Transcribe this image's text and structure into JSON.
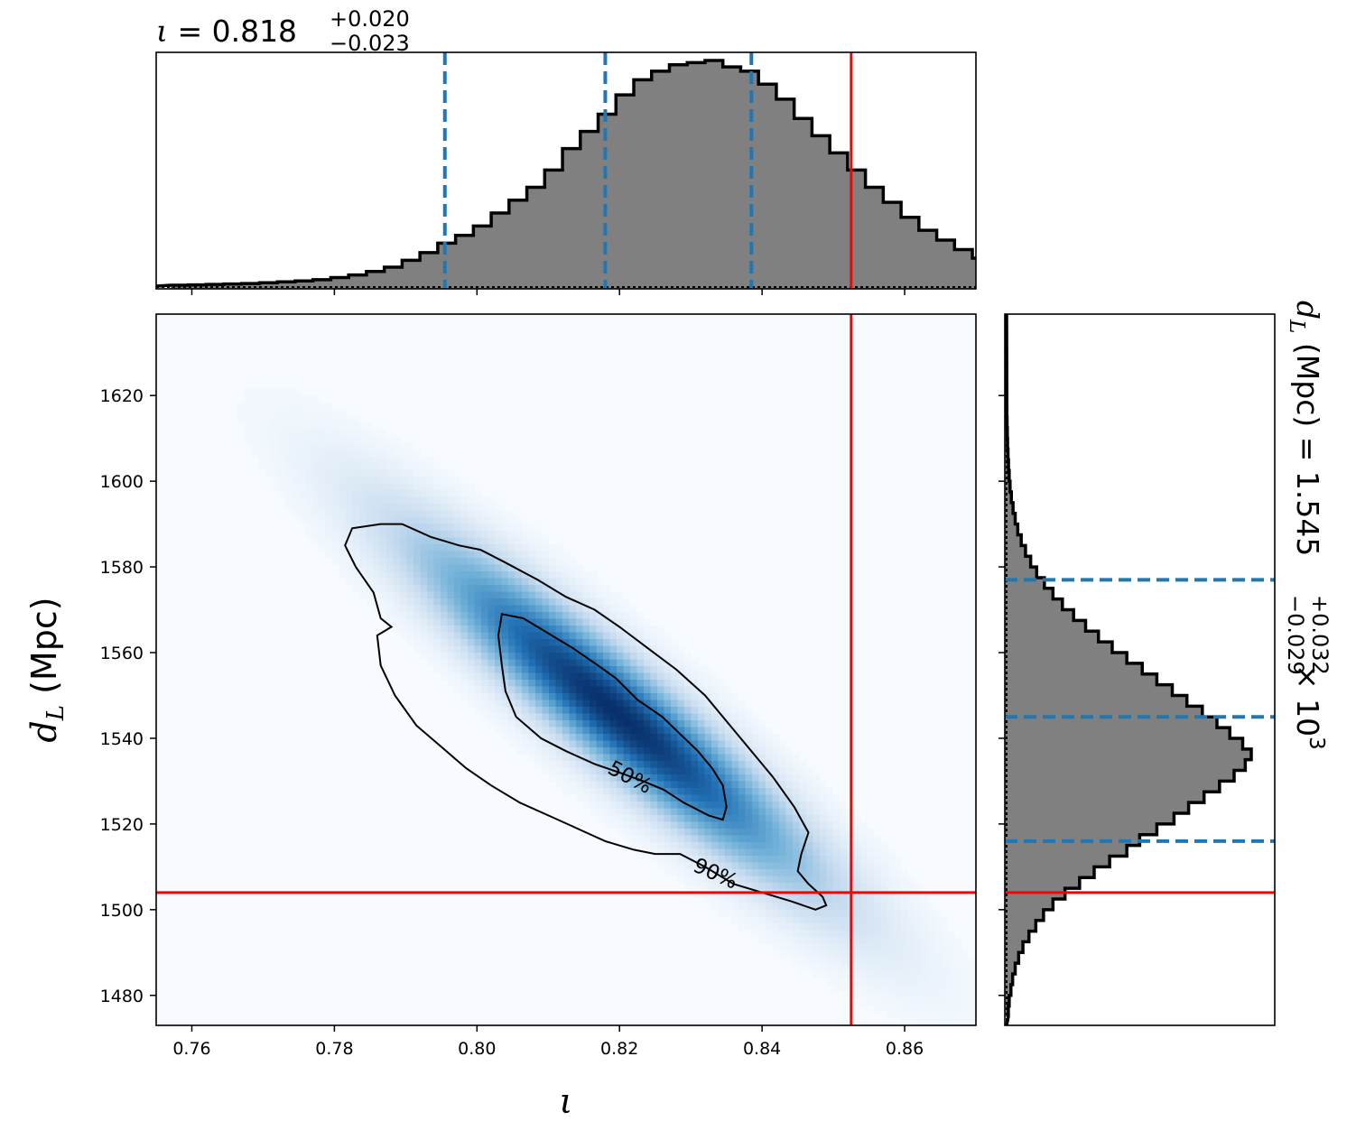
{
  "colors": {
    "histogram_fill": "#808080",
    "histogram_edge": "#000000",
    "quantile_line": "#1f77b4",
    "truth_line": "#ff0000",
    "density_low": "#f7fbff",
    "density_high": "#08306b",
    "contour": "#000000"
  },
  "chart_data": [
    {
      "id": "iota-marginal",
      "type": "bar",
      "subtype": "step-histogram",
      "title_symbol": "ι",
      "title_eq": " = 0.818",
      "title_sup": "+0.020",
      "title_sub": "−0.023",
      "xlim": [
        0.755,
        0.87
      ],
      "bin_edges_start": 0.757,
      "bin_width": 0.0025,
      "counts": [
        0.2,
        0.3,
        0.4,
        0.5,
        0.6,
        0.8,
        1,
        1.2,
        1.5,
        2,
        2.6,
        3.4,
        4.4,
        6,
        7.8,
        10,
        11.8,
        14,
        17,
        20,
        23,
        27,
        32,
        36,
        40,
        44.5,
        48,
        50,
        51.5,
        52,
        52.5,
        51,
        50,
        47,
        43.5,
        39,
        35,
        31,
        27,
        23,
        19.5,
        16,
        13,
        10.7,
        8.5,
        6.5,
        5,
        3.7,
        2.8,
        2.1,
        1.5,
        1.1,
        0.8,
        0.6,
        0.45,
        0.35
      ],
      "quantiles": [
        0.7955,
        0.818,
        0.8385
      ],
      "truth": 0.8525
    },
    {
      "id": "joint-density",
      "type": "heatmap",
      "xlim": [
        0.755,
        0.87
      ],
      "ylim": [
        1473,
        1639
      ],
      "xticks": [
        "0.76",
        "0.78",
        "0.80",
        "0.82",
        "0.84",
        "0.86"
      ],
      "xtick_values": [
        0.76,
        0.78,
        0.8,
        0.82,
        0.84,
        0.86
      ],
      "yticks": [
        "1480",
        "1500",
        "1520",
        "1540",
        "1560",
        "1580",
        "1600",
        "1620"
      ],
      "ytick_values": [
        1480,
        1500,
        1520,
        1540,
        1560,
        1580,
        1600,
        1620
      ],
      "xlabel": "ι",
      "ylabel_base": "d",
      "ylabel_sub": "L",
      "ylabel_unit": " (Mpc)",
      "mean": [
        0.8195,
        1546
      ],
      "density_axes": {
        "along_sd": 1.0,
        "across_sd": 0.055
      },
      "contours": [
        {
          "label": "50%",
          "label_at": [
            0.8215,
            1531
          ],
          "label_angle_deg": 28,
          "points": [
            [
              0.8035,
              1569
            ],
            [
              0.8065,
              1568
            ],
            [
              0.8105,
              1564
            ],
            [
              0.8135,
              1561
            ],
            [
              0.817,
              1557
            ],
            [
              0.8195,
              1554
            ],
            [
              0.8225,
              1549
            ],
            [
              0.826,
              1545
            ],
            [
              0.8285,
              1541
            ],
            [
              0.831,
              1537
            ],
            [
              0.833,
              1533
            ],
            [
              0.8345,
              1529
            ],
            [
              0.835,
              1524
            ],
            [
              0.8345,
              1521
            ],
            [
              0.8325,
              1522
            ],
            [
              0.829,
              1525
            ],
            [
              0.8262,
              1528
            ],
            [
              0.8233,
              1530
            ],
            [
              0.82,
              1532
            ],
            [
              0.8165,
              1534
            ],
            [
              0.8125,
              1537
            ],
            [
              0.809,
              1540
            ],
            [
              0.8055,
              1545
            ],
            [
              0.804,
              1551
            ],
            [
              0.8035,
              1557
            ],
            [
              0.803,
              1564
            ],
            [
              0.8035,
              1569
            ]
          ]
        },
        {
          "label": "90%",
          "label_at": [
            0.8335,
            1508.5
          ],
          "label_angle_deg": 24,
          "points": [
            [
              0.7865,
              1590
            ],
            [
              0.7895,
              1590
            ],
            [
              0.7935,
              1587
            ],
            [
              0.7975,
              1585
            ],
            [
              0.8005,
              1584
            ],
            [
              0.804,
              1581
            ],
            [
              0.8085,
              1577
            ],
            [
              0.8125,
              1573
            ],
            [
              0.8165,
              1570
            ],
            [
              0.82,
              1566
            ],
            [
              0.824,
              1561
            ],
            [
              0.828,
              1556
            ],
            [
              0.832,
              1550
            ],
            [
              0.835,
              1544
            ],
            [
              0.838,
              1538
            ],
            [
              0.8415,
              1531
            ],
            [
              0.8445,
              1524
            ],
            [
              0.8465,
              1518
            ],
            [
              0.8455,
              1513
            ],
            [
              0.845,
              1509
            ],
            [
              0.8465,
              1506
            ],
            [
              0.8485,
              1503
            ],
            [
              0.849,
              1501
            ],
            [
              0.8475,
              1500
            ],
            [
              0.844,
              1502
            ],
            [
              0.84,
              1504
            ],
            [
              0.836,
              1506
            ],
            [
              0.832,
              1510
            ],
            [
              0.8285,
              1513
            ],
            [
              0.825,
              1513
            ],
            [
              0.822,
              1514
            ],
            [
              0.818,
              1516
            ],
            [
              0.814,
              1519
            ],
            [
              0.81,
              1522
            ],
            [
              0.806,
              1525
            ],
            [
              0.802,
              1529
            ],
            [
              0.7985,
              1533
            ],
            [
              0.795,
              1538
            ],
            [
              0.7915,
              1543
            ],
            [
              0.7885,
              1550
            ],
            [
              0.7865,
              1557
            ],
            [
              0.786,
              1564
            ],
            [
              0.788,
              1566
            ],
            [
              0.7865,
              1568
            ],
            [
              0.7855,
              1574
            ],
            [
              0.783,
              1580
            ],
            [
              0.7815,
              1585
            ],
            [
              0.7825,
              1589
            ],
            [
              0.7865,
              1590
            ]
          ]
        }
      ],
      "truth": [
        0.8525,
        1504
      ]
    },
    {
      "id": "dl-marginal",
      "type": "bar",
      "subtype": "step-histogram-horizontal",
      "title_base": "d",
      "title_sub": "L",
      "title_eq": " (Mpc) = 1.545",
      "title_sup": "+0.032",
      "title_subscript": "−0.029",
      "title_tail": " × 10",
      "title_exp": "3",
      "ylim": [
        1473,
        1639
      ],
      "bin_edges_start": 1475,
      "bin_width": 2.5,
      "counts": [
        0.2,
        0.3,
        0.5,
        0.7,
        1,
        1.4,
        1.9,
        2.6,
        3.4,
        4.3,
        5.4,
        6.8,
        8.5,
        10.2,
        12,
        14,
        15.5,
        17.5,
        19.5,
        21.2,
        23,
        24.8,
        26.5,
        27.8,
        28.5,
        27.5,
        26,
        24.5,
        22.8,
        21,
        19.3,
        17.5,
        15.8,
        14,
        12.3,
        10.7,
        9.2,
        7.8,
        6.5,
        5.4,
        4.4,
        3.5,
        2.8,
        2.2,
        1.7,
        1.3,
        1,
        0.75,
        0.55,
        0.4,
        0.3,
        0.22,
        0.16,
        0.11,
        0.08,
        0.05,
        0.03
      ],
      "quantiles": [
        1516,
        1545,
        1577
      ],
      "truth": 1504
    }
  ]
}
